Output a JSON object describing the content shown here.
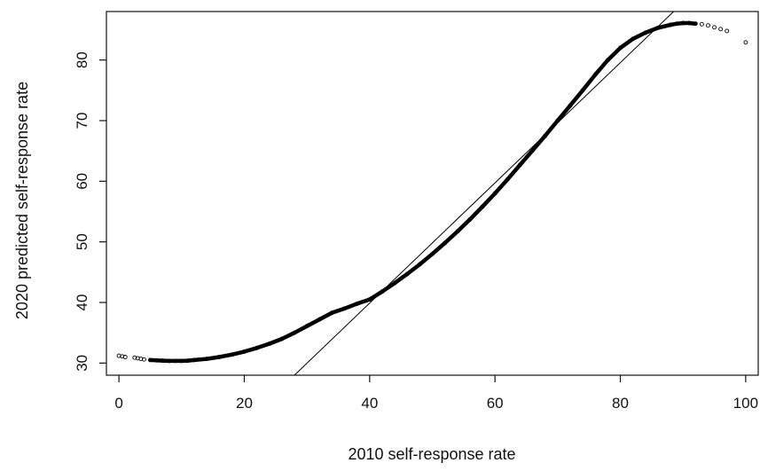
{
  "chart_data": {
    "type": "scatter",
    "title": "",
    "xlabel": "2010 self-response rate",
    "ylabel": "2020 predicted self-response rate",
    "xlim": [
      -2,
      102
    ],
    "ylim": [
      28,
      88
    ],
    "xticks": [
      0,
      20,
      40,
      60,
      80,
      100
    ],
    "yticks": [
      30,
      40,
      50,
      60,
      70,
      80
    ],
    "grid": false,
    "legend": "none",
    "series": [
      {
        "kind": "points",
        "x": [
          0,
          0.5,
          1,
          2.5,
          3,
          3.5,
          4,
          5,
          6,
          7,
          8,
          9,
          10,
          11,
          12,
          14,
          16,
          18,
          20,
          22,
          24,
          26,
          28,
          30,
          32,
          34,
          36,
          38,
          40,
          42,
          44,
          46,
          48,
          50,
          52,
          54,
          56,
          58,
          60,
          62,
          64,
          66,
          68,
          70,
          72,
          74,
          76,
          78,
          80,
          82,
          84,
          86,
          88,
          89,
          90,
          91,
          92,
          93,
          94,
          95,
          96,
          97,
          100
        ],
        "y": [
          31.2,
          31.1,
          31.0,
          30.9,
          30.8,
          30.7,
          30.6,
          30.5,
          30.45,
          30.4,
          30.35,
          30.35,
          30.35,
          30.4,
          30.5,
          30.7,
          31.0,
          31.4,
          31.9,
          32.5,
          33.2,
          34.0,
          35.0,
          36.1,
          37.2,
          38.3,
          39.0,
          39.8,
          40.5,
          41.8,
          43.2,
          44.7,
          46.3,
          48.0,
          49.8,
          51.7,
          53.7,
          55.8,
          58.0,
          60.3,
          62.7,
          65.1,
          67.5,
          70.0,
          72.5,
          75.0,
          77.6,
          80.0,
          82.0,
          83.5,
          84.5,
          85.3,
          85.8,
          86.0,
          86.1,
          86.1,
          86.0,
          85.9,
          85.7,
          85.4,
          85.1,
          84.8,
          82.9
        ]
      },
      {
        "kind": "reference-line",
        "x": [
          28,
          88.5
        ],
        "y": [
          28,
          88
        ]
      }
    ]
  },
  "colors": {
    "points": "#000000",
    "line": "#000000",
    "axes": "#111111"
  }
}
